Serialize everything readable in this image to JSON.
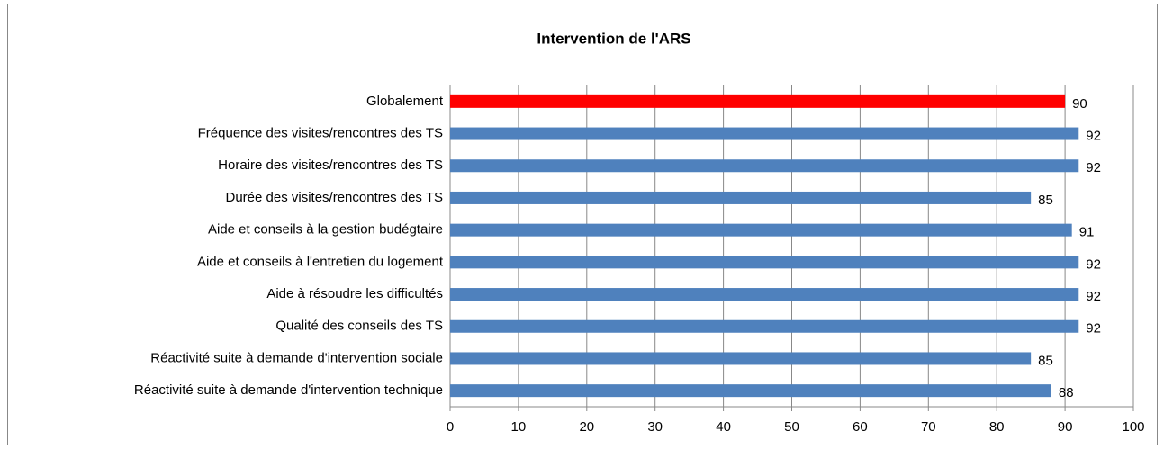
{
  "chart_data": {
    "type": "bar",
    "orientation": "horizontal",
    "title": "Intervention de l'ARS",
    "categories": [
      "Globalement",
      "Fréquence des visites/rencontres des TS",
      "Horaire des visites/rencontres des TS",
      "Durée des visites/rencontres des TS",
      "Aide et conseils à la gestion budégtaire",
      "Aide et conseils à l'entretien du logement",
      "Aide à résoudre les difficultés",
      "Qualité des conseils des TS",
      "Réactivité suite à demande d'intervention sociale",
      "Réactivité suite à demande d'intervention technique"
    ],
    "values": [
      90,
      92,
      92,
      85,
      91,
      92,
      92,
      92,
      85,
      88
    ],
    "colors": [
      "#ff0000",
      "#4f81bd",
      "#4f81bd",
      "#4f81bd",
      "#4f81bd",
      "#4f81bd",
      "#4f81bd",
      "#4f81bd",
      "#4f81bd",
      "#4f81bd"
    ],
    "xlim": [
      0,
      100
    ],
    "xticks": [
      0,
      10,
      20,
      30,
      40,
      50,
      60,
      70,
      80,
      90,
      100
    ],
    "grid": true
  }
}
